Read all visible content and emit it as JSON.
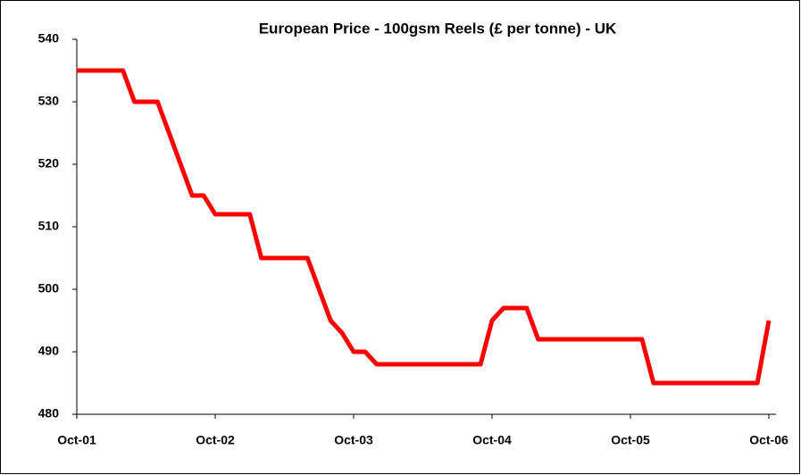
{
  "chart_data": {
    "type": "line",
    "title": "European Price - 100gsm Reels (£ per tonne) - UK",
    "categories": [
      "Oct-01",
      null,
      null,
      null,
      null,
      null,
      null,
      null,
      null,
      null,
      null,
      null,
      "Oct-02",
      null,
      null,
      null,
      null,
      null,
      null,
      null,
      null,
      null,
      null,
      null,
      "Oct-03",
      null,
      null,
      null,
      null,
      null,
      null,
      null,
      null,
      null,
      null,
      null,
      "Oct-04",
      null,
      null,
      null,
      null,
      null,
      null,
      null,
      null,
      null,
      null,
      null,
      "Oct-05",
      null,
      null,
      null,
      null,
      null,
      null,
      null,
      null,
      null,
      null,
      null,
      "Oct-06"
    ],
    "series": [
      {
        "name": "UK",
        "color": "#ff0000",
        "values": [
          535,
          535,
          535,
          535,
          535,
          530,
          530,
          530,
          525,
          520,
          515,
          515,
          512,
          512,
          512,
          512,
          505,
          505,
          505,
          505,
          505,
          500,
          495,
          493,
          490,
          490,
          488,
          488,
          488,
          488,
          488,
          488,
          488,
          488,
          488,
          488,
          495,
          497,
          497,
          497,
          492,
          492,
          492,
          492,
          492,
          492,
          492,
          492,
          492,
          492,
          485,
          485,
          485,
          485,
          485,
          485,
          485,
          485,
          485,
          485,
          495
        ]
      }
    ],
    "ylim": [
      480,
      540
    ],
    "yticks": [
      480,
      490,
      500,
      510,
      520,
      530,
      540
    ],
    "grid": false
  }
}
